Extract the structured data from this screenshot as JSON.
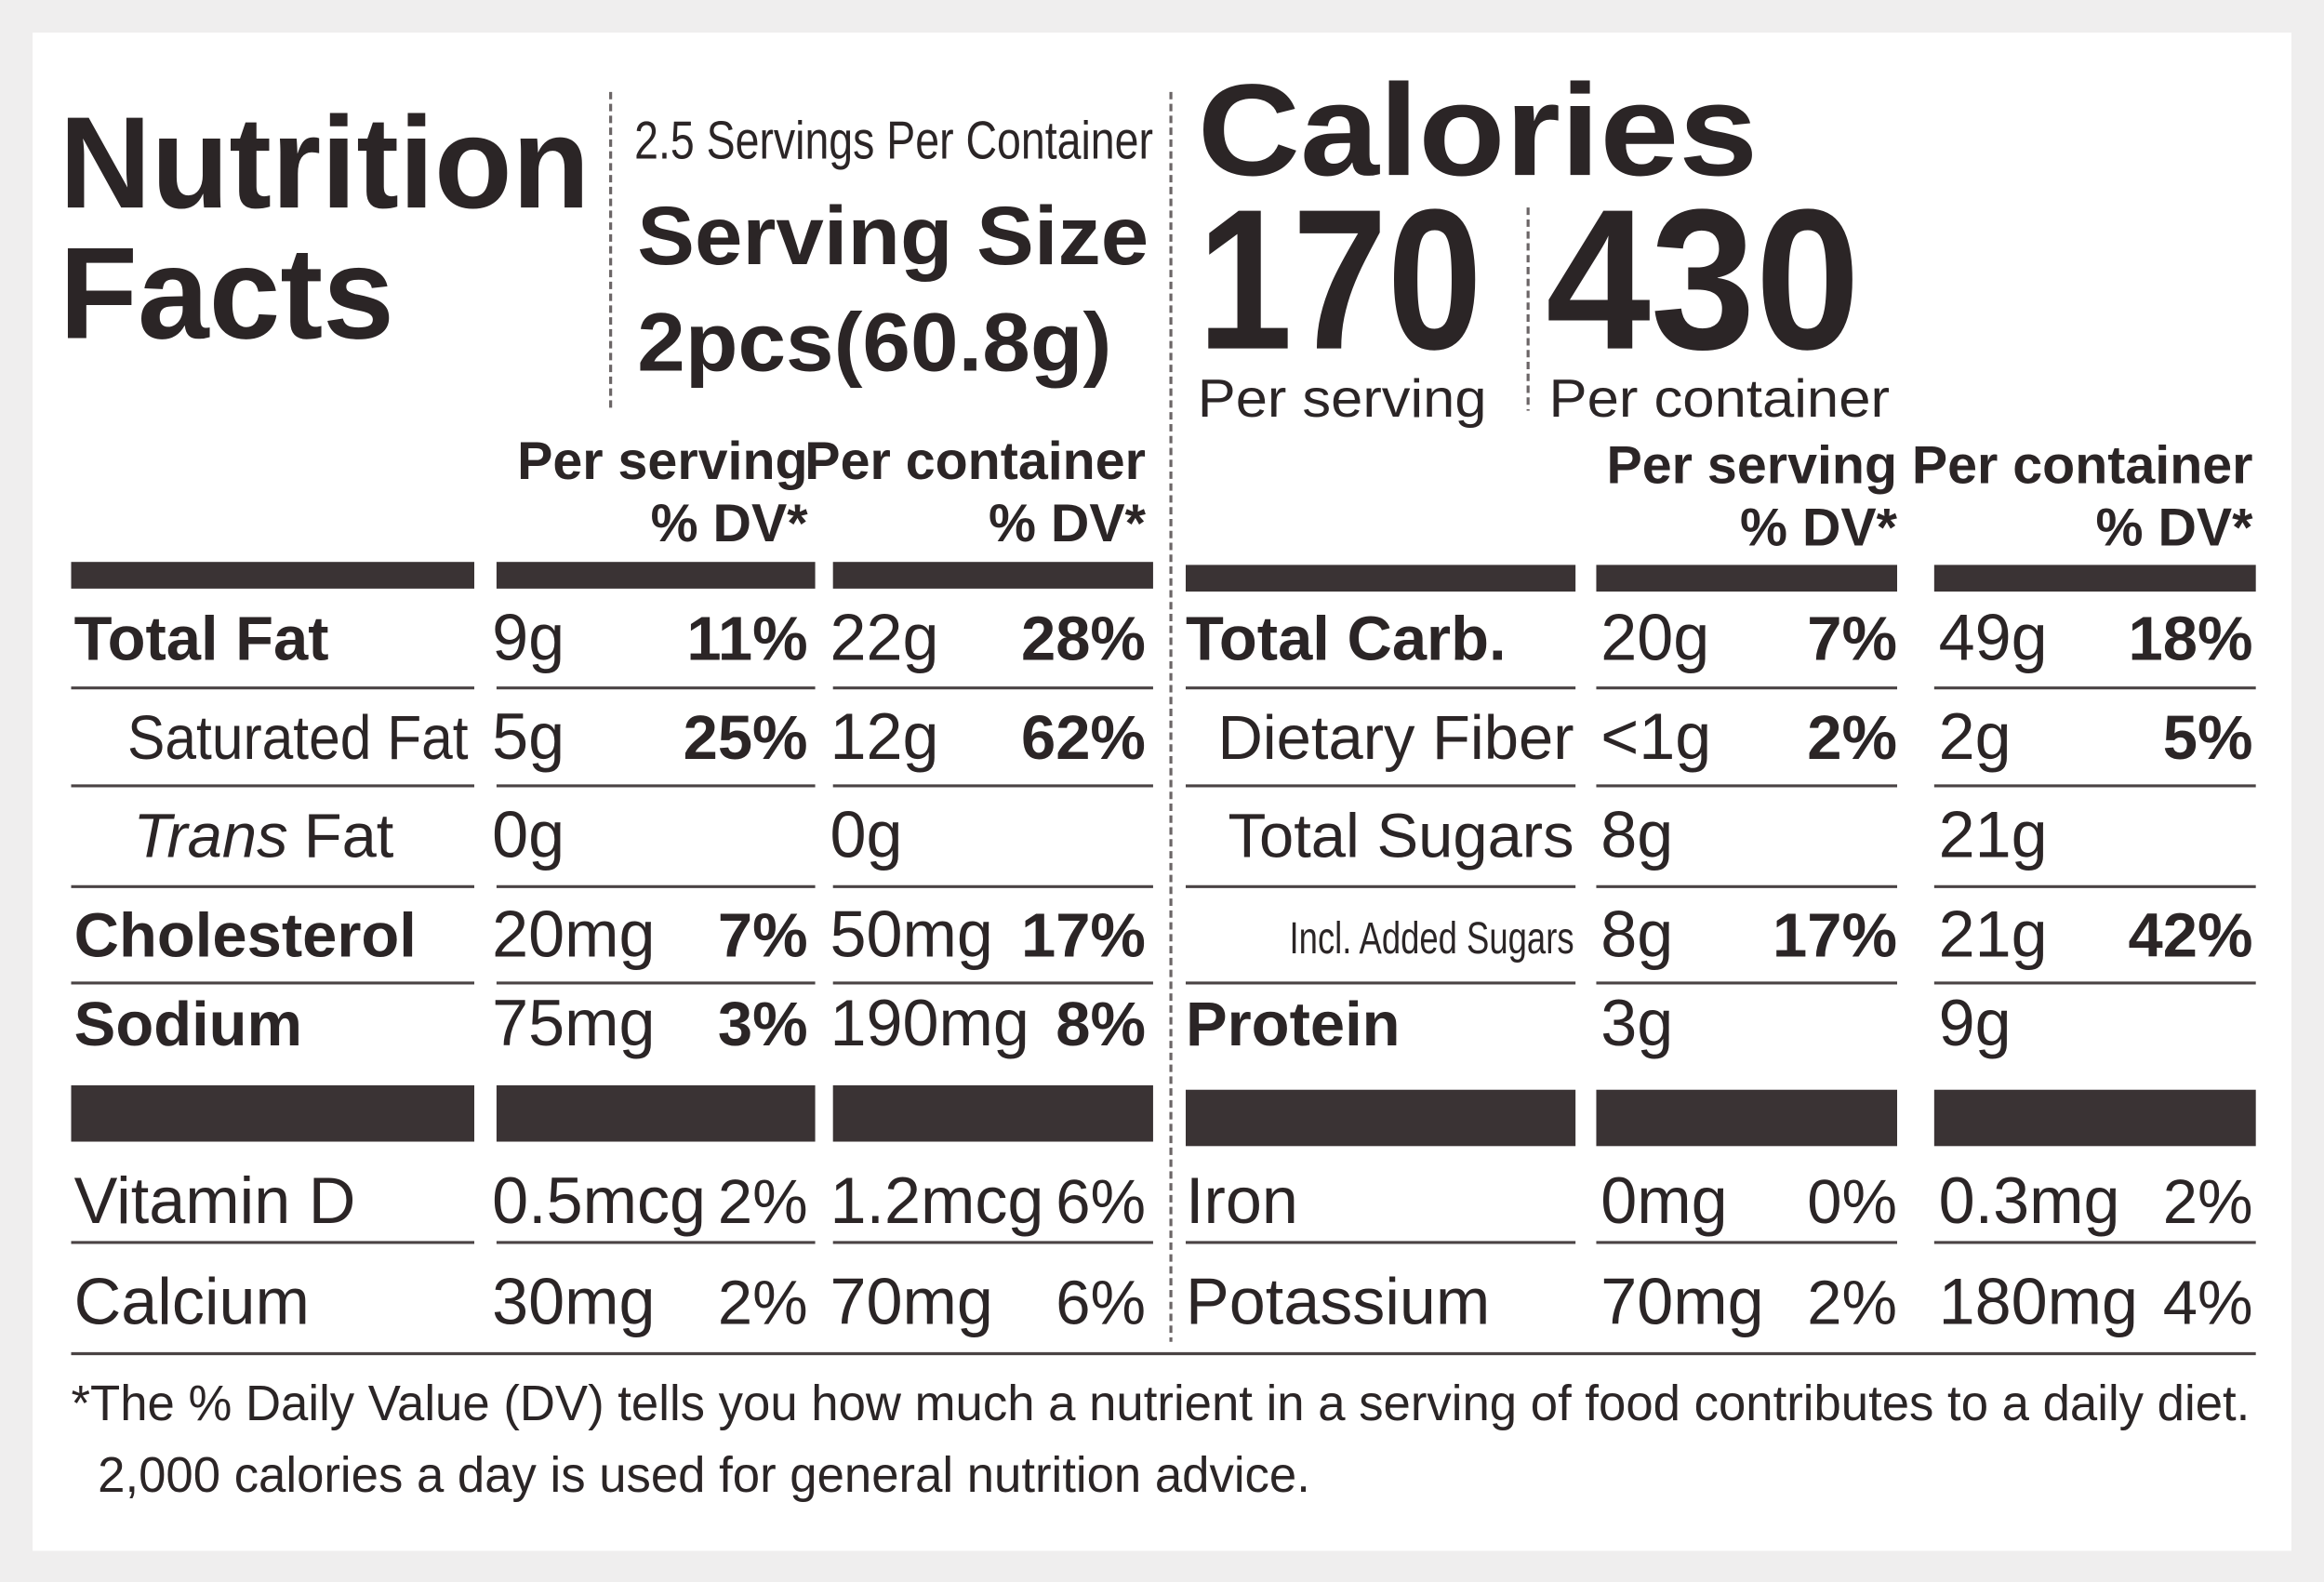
{
  "header": {
    "title_lines": [
      "Nutrition",
      "Facts"
    ],
    "servings_per_container": "2.5 Servings Per Container",
    "serving_size_label": "Serving Size",
    "serving_size": "2pcs(60.8g)"
  },
  "calories": {
    "label": "Calories",
    "per_serving": 170,
    "per_serving_label": "Per serving",
    "per_container": 430,
    "per_container_label": "Per container"
  },
  "column_headers": {
    "per_serving": "Per serving",
    "per_container": "Per container",
    "dv": "% DV*"
  },
  "left_table": {
    "rows": [
      {
        "name": "Total Fat",
        "style": "bold",
        "serving": "9g",
        "serving_dv": "11%",
        "container": "22g",
        "container_dv": "28%"
      },
      {
        "name": "Saturated Fat",
        "style": "sub",
        "serving": "5g",
        "serving_dv": "25%",
        "container": "12g",
        "container_dv": "62%"
      },
      {
        "name_italic": "Trans",
        "name": "Fat",
        "style": "sub",
        "serving": "0g",
        "container": "0g"
      },
      {
        "name": "Cholesterol",
        "style": "bold",
        "serving": "20mg",
        "serving_dv": "7%",
        "container": "50mg",
        "container_dv": "17%"
      },
      {
        "name": "Sodium",
        "style": "bold",
        "serving": "75mg",
        "serving_dv": "3%",
        "container": "190mg",
        "container_dv": "8%"
      }
    ],
    "minerals": [
      {
        "name": "Vitamin D",
        "serving": "0.5mcg",
        "serving_dv": "2%",
        "container": "1.2mcg",
        "container_dv": "6%"
      },
      {
        "name": "Calcium",
        "serving": "30mg",
        "serving_dv": "2%",
        "container": "70mg",
        "container_dv": "6%"
      }
    ]
  },
  "right_table": {
    "rows": [
      {
        "name": "Total Carb.",
        "style": "bold",
        "serving": "20g",
        "serving_dv": "7%",
        "container": "49g",
        "container_dv": "18%"
      },
      {
        "name": "Dietary Fiber",
        "style": "sub",
        "serving": "<1g",
        "serving_dv": "2%",
        "container": "2g",
        "container_dv": "5%"
      },
      {
        "name": "Total Sugars",
        "style": "sub",
        "serving": "8g",
        "container": "21g"
      },
      {
        "name": "Incl. Added Sugars",
        "style": "small",
        "serving": "8g",
        "serving_dv": "17%",
        "container": "21g",
        "container_dv": "42%"
      },
      {
        "name": "Protein",
        "style": "bold",
        "serving": "3g",
        "container": "9g"
      }
    ],
    "minerals": [
      {
        "name": "Iron",
        "serving": "0mg",
        "serving_dv": "0%",
        "container": "0.3mg",
        "container_dv": "2%"
      },
      {
        "name": "Potassium",
        "serving": "70mg",
        "serving_dv": "2%",
        "container": "180mg",
        "container_dv": "4%"
      }
    ]
  },
  "footnote": [
    "*The % Daily Value (DV) tells you how much a nutrient in a serving of food contributes to a daily diet.",
    "2,000 calories a day is used for general nutrition advice."
  ]
}
